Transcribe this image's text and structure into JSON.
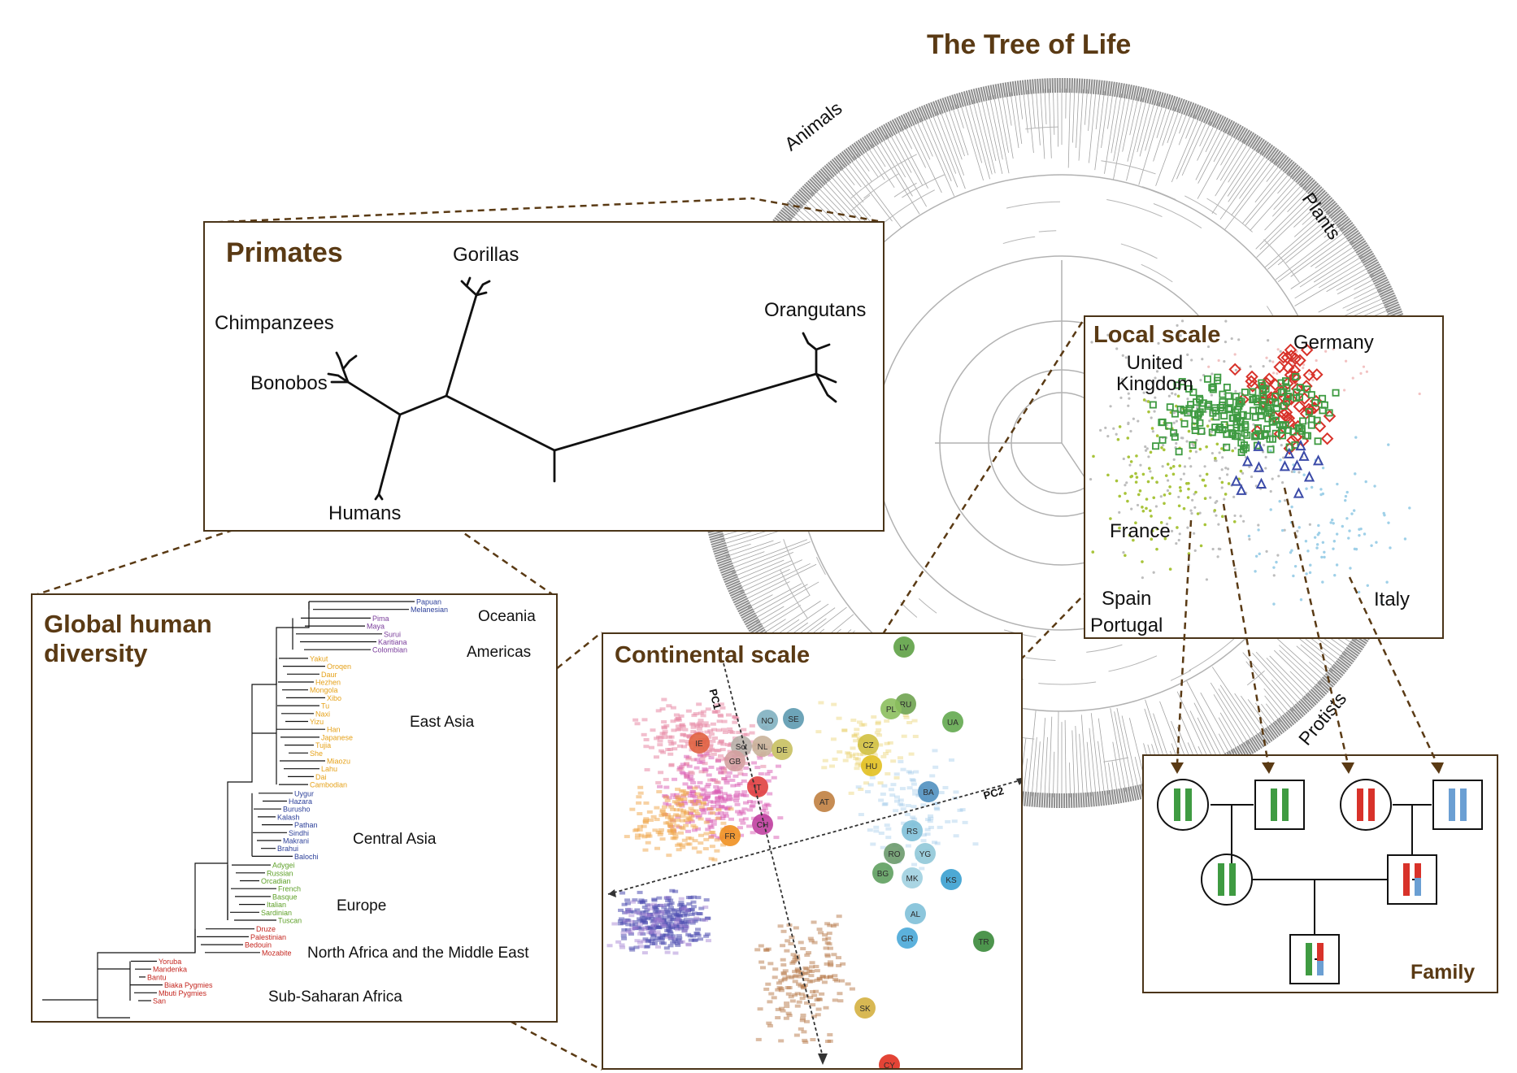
{
  "title": "The Tree of Life",
  "tree_labels": {
    "animals": "Animals",
    "plants": "Plants",
    "protists": "Protists"
  },
  "primates": {
    "title": "Primates",
    "labels": {
      "gorillas": "Gorillas",
      "chimpanzees": "Chimpanzees",
      "bonobos": "Bonobos",
      "orangutans": "Orangutans",
      "humans": "Humans"
    }
  },
  "local_scale": {
    "title": "Local scale",
    "labels": {
      "germany": "Germany",
      "united_kingdom": "United\nKingdom",
      "france": "France",
      "spain_portugal": "Spain\nPortugal",
      "italy": "Italy"
    }
  },
  "continental": {
    "title": "Continental scale",
    "axes": {
      "pc1": "PC1",
      "pc2": "PC2"
    },
    "codes": [
      "LV",
      "RU",
      "PL",
      "UA",
      "NO",
      "SE",
      "Sct",
      "NL",
      "GB",
      "DE",
      "CZ",
      "HU",
      "IE",
      "CH",
      "AT",
      "BA",
      "FR",
      "RS",
      "YG",
      "RO",
      "BG",
      "MK",
      "KS",
      "AL",
      "GR",
      "TR",
      "IT",
      "SK",
      "CY"
    ]
  },
  "global": {
    "title": "Global human\ndiversity",
    "regions": {
      "oceania": "Oceania",
      "americas": "Americas",
      "east_asia": "East Asia",
      "central_asia": "Central Asia",
      "europe": "Europe",
      "north_africa": "North Africa and the Middle East",
      "sub_saharan": "Sub-Saharan Africa"
    },
    "populations": {
      "oceania": [
        "Papuan",
        "Melanesian"
      ],
      "americas": [
        "Pima",
        "Maya",
        "Surui",
        "Karitiana",
        "Colombian"
      ],
      "east_asia": [
        "Yakut",
        "Oroqen",
        "Daur",
        "Hezhen",
        "Mongola",
        "Xibo",
        "Tu",
        "Naxi",
        "Yizu",
        "Han",
        "Japanese",
        "Tujia",
        "She",
        "Miaozu",
        "Lahu",
        "Dai",
        "Cambodian"
      ],
      "central_asia": [
        "Uygur",
        "Hazara",
        "Burusho",
        "Kalash",
        "Pathan",
        "Sindhi",
        "Makrani",
        "Brahui",
        "Balochi"
      ],
      "europe": [
        "Adygei",
        "Russian",
        "Orcadian",
        "French",
        "Basque",
        "Italian",
        "Sardinian",
        "Tuscan"
      ],
      "north_africa": [
        "Druze",
        "Palestinian",
        "Bedouin",
        "Mozabite"
      ],
      "sub_saharan": [
        "Yoruba",
        "Mandenka",
        "Bantu",
        "Biaka Pygmies",
        "Mbuti Pygmies",
        "San"
      ]
    }
  },
  "family": {
    "title": "Family"
  },
  "colors": {
    "panel_border": "#4a3418",
    "title_brown": "#5a3a14",
    "green": "#3f9b42",
    "red": "#d8322a",
    "blue": "#6b9fd3",
    "dark_blue": "#3b4aa8",
    "oceania": "#2b3f99",
    "americas": "#7a3d9b",
    "east_asia": "#e6a21a",
    "central_asia": "#2b3f99",
    "europe": "#5fa12a",
    "africa": "#c4261f"
  }
}
